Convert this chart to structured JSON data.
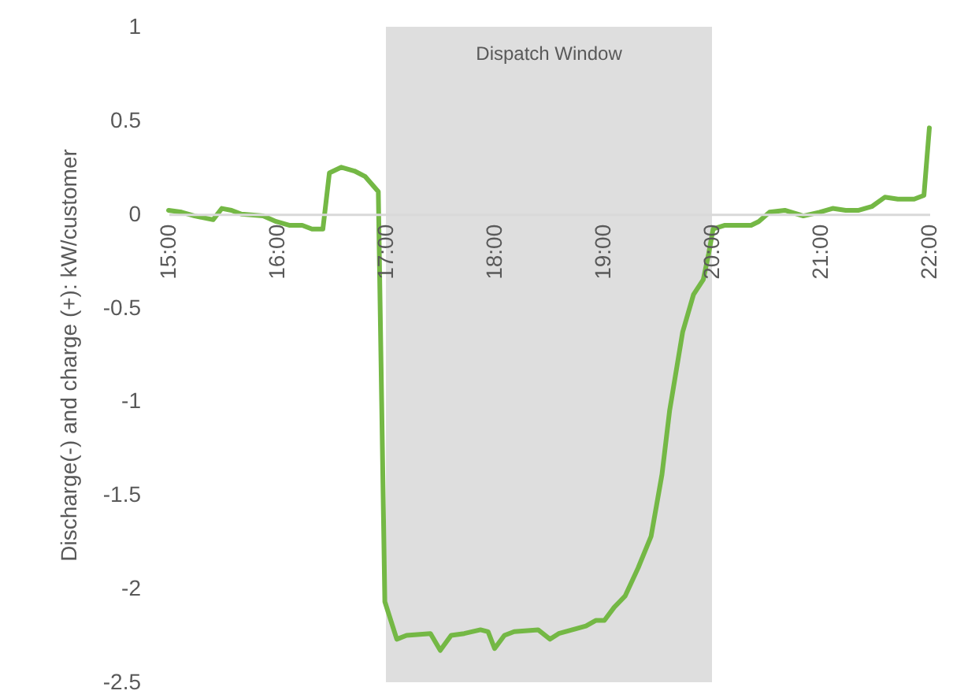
{
  "chart_data": {
    "type": "line",
    "ylabel": "Discharge(-)  and charge (+): kW/customer",
    "x": [
      15,
      15.12,
      15.24,
      15.41,
      15.49,
      15.58,
      15.67,
      15.87,
      15.99,
      16.11,
      16.23,
      16.32,
      16.42,
      16.48,
      16.59,
      16.71,
      16.81,
      16.93,
      16.99,
      17.1,
      17.19,
      17.41,
      17.5,
      17.6,
      17.72,
      17.87,
      17.94,
      18,
      18.09,
      18.18,
      18.4,
      18.51,
      18.59,
      18.84,
      18.93,
      19.01,
      19.1,
      19.2,
      19.32,
      19.44,
      19.54,
      19.61,
      19.73,
      19.83,
      19.92,
      19.97,
      20.01,
      20.12,
      20.36,
      20.43,
      20.53,
      20.67,
      20.84,
      20.99,
      21.11,
      21.23,
      21.35,
      21.47,
      21.59,
      21.71,
      21.86,
      21.95,
      22
    ],
    "series": [
      {
        "color": "#74b845",
        "values": [
          0.02,
          0.01,
          -0.01,
          -0.03,
          0.03,
          0.02,
          0,
          -0.01,
          -0.04,
          -0.06,
          -0.06,
          -0.08,
          -0.08,
          0.22,
          0.25,
          0.23,
          0.2,
          0.12,
          -2.07,
          -2.27,
          -2.25,
          -2.24,
          -2.33,
          -2.25,
          -2.24,
          -2.22,
          -2.23,
          -2.32,
          -2.25,
          -2.23,
          -2.22,
          -2.27,
          -2.24,
          -2.2,
          -2.17,
          -2.17,
          -2.1,
          -2.04,
          -1.89,
          -1.72,
          -1.39,
          -1.05,
          -0.63,
          -0.43,
          -0.35,
          -0.21,
          -0.08,
          -0.06,
          -0.06,
          -0.04,
          0.01,
          0.02,
          -0.01,
          0.01,
          0.03,
          0.02,
          0.02,
          0.04,
          0.09,
          0.08,
          0.08,
          0.1,
          0.46
        ]
      }
    ],
    "xlim": [
      15,
      22
    ],
    "xticks": [
      {
        "value": 15,
        "label": "15:00"
      },
      {
        "value": 16,
        "label": "16:00"
      },
      {
        "value": 17,
        "label": "17:00"
      },
      {
        "value": 18,
        "label": "18:00"
      },
      {
        "value": 19,
        "label": "19:00"
      },
      {
        "value": 20,
        "label": "20:00"
      },
      {
        "value": 21,
        "label": "21:00"
      },
      {
        "value": 22,
        "label": "22:00"
      }
    ],
    "ylim": [
      -2.5,
      1
    ],
    "yticks": [
      -2.5,
      -2,
      -1.5,
      -1,
      -0.5,
      0,
      0.5,
      1
    ],
    "bands": [
      {
        "axis": "x",
        "from": 17,
        "to": 20,
        "label": "Dispatch Window",
        "color": "#dedede"
      }
    ],
    "grid": false,
    "marker": "none",
    "line_style": "solid"
  }
}
